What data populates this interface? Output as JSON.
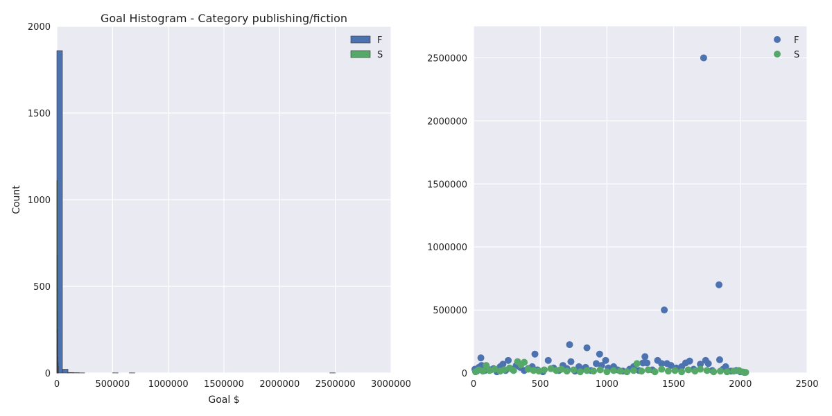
{
  "chart_data": [
    {
      "type": "bar",
      "title": "Goal Histogram - Category publishing/fiction",
      "xlabel": "Goal $",
      "ylabel": "Count",
      "xlim": [
        0,
        3000000
      ],
      "ylim": [
        0,
        2000
      ],
      "xticks": [
        0,
        500000,
        1000000,
        1500000,
        2000000,
        2500000,
        3000000
      ],
      "yticks": [
        0,
        500,
        1000,
        1500,
        2000
      ],
      "grid": true,
      "legend_position": "top-right",
      "series": [
        {
          "name": "F",
          "color": "#4c72b0",
          "bins": [
            {
              "x0": 0,
              "x1": 50000,
              "count": 1860
            },
            {
              "x0": 50000,
              "x1": 100000,
              "count": 22
            },
            {
              "x0": 100000,
              "x1": 150000,
              "count": 3
            },
            {
              "x0": 150000,
              "x1": 200000,
              "count": 2
            },
            {
              "x0": 200000,
              "x1": 250000,
              "count": 1
            },
            {
              "x0": 500000,
              "x1": 550000,
              "count": 1
            },
            {
              "x0": 650000,
              "x1": 700000,
              "count": 1
            },
            {
              "x0": 2450000,
              "x1": 2500000,
              "count": 1
            }
          ]
        },
        {
          "name": "S",
          "color": "#55a868",
          "bins": [
            {
              "x0": 0,
              "x1": 1000,
              "count": 1110
            },
            {
              "x0": 1000,
              "x1": 2000,
              "count": 680
            },
            {
              "x0": 2000,
              "x1": 3000,
              "count": 480
            },
            {
              "x0": 3000,
              "x1": 4000,
              "count": 360
            },
            {
              "x0": 4000,
              "x1": 5000,
              "count": 250
            },
            {
              "x0": 5000,
              "x1": 6000,
              "count": 180
            },
            {
              "x0": 6000,
              "x1": 7000,
              "count": 90
            },
            {
              "x0": 7000,
              "x1": 8000,
              "count": 60
            },
            {
              "x0": 8000,
              "x1": 9000,
              "count": 40
            },
            {
              "x0": 9000,
              "x1": 10000,
              "count": 30
            }
          ]
        }
      ]
    },
    {
      "type": "scatter",
      "title": "",
      "xlabel": "",
      "ylabel": "",
      "xlim": [
        0,
        2500
      ],
      "ylim": [
        0,
        2750000
      ],
      "xticks": [
        0,
        500,
        1000,
        1500,
        2000,
        2500
      ],
      "yticks": [
        0,
        500000,
        1000000,
        1500000,
        2000000,
        2500000
      ],
      "grid": true,
      "legend_position": "top-right",
      "series": [
        {
          "name": "F",
          "color": "#4c72b0",
          "points": [
            [
              10,
              30000
            ],
            [
              25,
              15000
            ],
            [
              40,
              45000
            ],
            [
              55,
              120000
            ],
            [
              60,
              60000
            ],
            [
              85,
              20000
            ],
            [
              100,
              40000
            ],
            [
              130,
              25000
            ],
            [
              150,
              35000
            ],
            [
              175,
              10000
            ],
            [
              200,
              50000
            ],
            [
              220,
              70000
            ],
            [
              240,
              20000
            ],
            [
              260,
              100000
            ],
            [
              290,
              30000
            ],
            [
              320,
              60000
            ],
            [
              350,
              45000
            ],
            [
              380,
              20000
            ],
            [
              410,
              35000
            ],
            [
              440,
              50000
            ],
            [
              460,
              150000
            ],
            [
              480,
              25000
            ],
            [
              520,
              10000
            ],
            [
              560,
              100000
            ],
            [
              600,
              40000
            ],
            [
              640,
              20000
            ],
            [
              670,
              60000
            ],
            [
              700,
              35000
            ],
            [
              720,
              225000
            ],
            [
              730,
              90000
            ],
            [
              760,
              15000
            ],
            [
              790,
              50000
            ],
            [
              820,
              30000
            ],
            [
              840,
              45000
            ],
            [
              850,
              200000
            ],
            [
              880,
              20000
            ],
            [
              920,
              75000
            ],
            [
              945,
              150000
            ],
            [
              960,
              60000
            ],
            [
              990,
              100000
            ],
            [
              1010,
              40000
            ],
            [
              1050,
              50000
            ],
            [
              1080,
              25000
            ],
            [
              1120,
              15000
            ],
            [
              1170,
              30000
            ],
            [
              1200,
              50000
            ],
            [
              1240,
              20000
            ],
            [
              1270,
              80000
            ],
            [
              1285,
              130000
            ],
            [
              1300,
              80000
            ],
            [
              1340,
              25000
            ],
            [
              1380,
              100000
            ],
            [
              1410,
              75000
            ],
            [
              1430,
              500000
            ],
            [
              1450,
              75000
            ],
            [
              1480,
              60000
            ],
            [
              1520,
              40000
            ],
            [
              1560,
              50000
            ],
            [
              1590,
              80000
            ],
            [
              1620,
              95000
            ],
            [
              1650,
              30000
            ],
            [
              1700,
              70000
            ],
            [
              1725,
              2500000
            ],
            [
              1740,
              100000
            ],
            [
              1760,
              75000
            ],
            [
              1790,
              20000
            ],
            [
              1840,
              700000
            ],
            [
              1845,
              105000
            ],
            [
              1870,
              30000
            ],
            [
              1890,
              50000
            ],
            [
              1930,
              15000
            ],
            [
              1970,
              20000
            ],
            [
              2000,
              10000
            ],
            [
              2030,
              5000
            ]
          ]
        },
        {
          "name": "S",
          "color": "#55a868",
          "points": [
            [
              15,
              10000
            ],
            [
              40,
              25000
            ],
            [
              70,
              15000
            ],
            [
              95,
              60000
            ],
            [
              120,
              20000
            ],
            [
              160,
              30000
            ],
            [
              200,
              15000
            ],
            [
              230,
              25000
            ],
            [
              270,
              40000
            ],
            [
              300,
              20000
            ],
            [
              330,
              90000
            ],
            [
              355,
              65000
            ],
            [
              380,
              85000
            ],
            [
              410,
              30000
            ],
            [
              450,
              20000
            ],
            [
              490,
              15000
            ],
            [
              530,
              25000
            ],
            [
              580,
              35000
            ],
            [
              620,
              20000
            ],
            [
              660,
              30000
            ],
            [
              700,
              15000
            ],
            [
              750,
              25000
            ],
            [
              800,
              10000
            ],
            [
              850,
              20000
            ],
            [
              900,
              15000
            ],
            [
              950,
              25000
            ],
            [
              1000,
              10000
            ],
            [
              1050,
              20000
            ],
            [
              1100,
              15000
            ],
            [
              1150,
              10000
            ],
            [
              1200,
              20000
            ],
            [
              1225,
              75000
            ],
            [
              1260,
              15000
            ],
            [
              1310,
              25000
            ],
            [
              1360,
              10000
            ],
            [
              1410,
              30000
            ],
            [
              1460,
              15000
            ],
            [
              1510,
              20000
            ],
            [
              1560,
              10000
            ],
            [
              1610,
              25000
            ],
            [
              1660,
              15000
            ],
            [
              1700,
              30000
            ],
            [
              1750,
              20000
            ],
            [
              1800,
              10000
            ],
            [
              1850,
              15000
            ],
            [
              1900,
              10000
            ],
            [
              1950,
              15000
            ],
            [
              1990,
              20000
            ],
            [
              2020,
              8000
            ],
            [
              2040,
              5000
            ]
          ]
        }
      ]
    }
  ]
}
